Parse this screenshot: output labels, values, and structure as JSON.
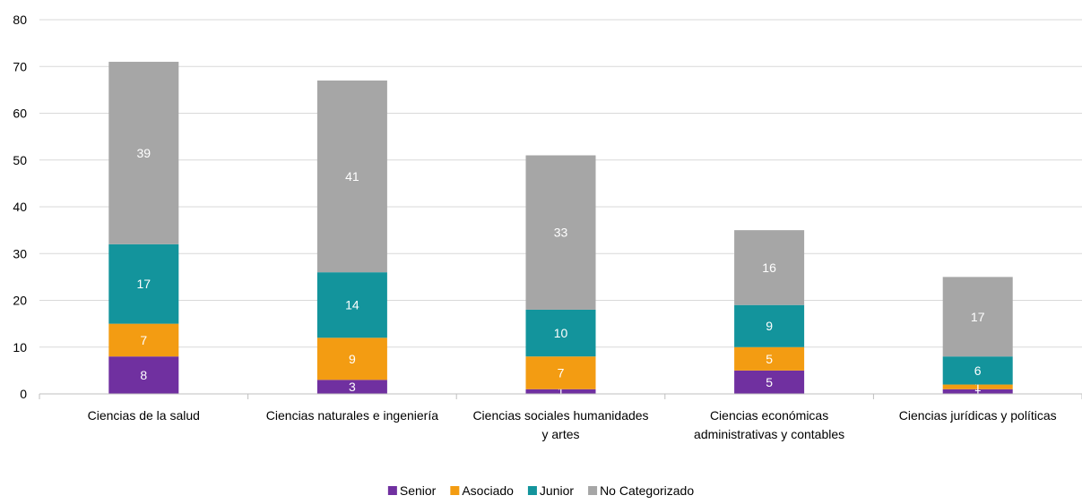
{
  "chart_data": {
    "type": "bar",
    "stacked": true,
    "categories": [
      [
        "Ciencias de la salud"
      ],
      [
        "Ciencias naturales e ingeniería"
      ],
      [
        "Ciencias sociales humanidades",
        "y artes"
      ],
      [
        "Ciencias económicas",
        "administrativas y contables"
      ],
      [
        "Ciencias jurídicas y políticas"
      ]
    ],
    "series": [
      {
        "name": "Senior",
        "color": "#7030a0",
        "values": [
          8,
          3,
          1,
          5,
          1
        ]
      },
      {
        "name": "Asociado",
        "color": "#f39c12",
        "values": [
          7,
          9,
          7,
          5,
          1
        ]
      },
      {
        "name": "Junior",
        "color": "#13949c",
        "values": [
          17,
          14,
          10,
          9,
          6
        ]
      },
      {
        "name": "No Categorizado",
        "color": "#a6a6a6",
        "values": [
          39,
          41,
          33,
          16,
          17
        ]
      }
    ],
    "ylim": [
      0,
      80
    ],
    "yticks": [
      0,
      10,
      20,
      30,
      40,
      50,
      60,
      70,
      80
    ],
    "grid": true,
    "legend": "bottom"
  }
}
